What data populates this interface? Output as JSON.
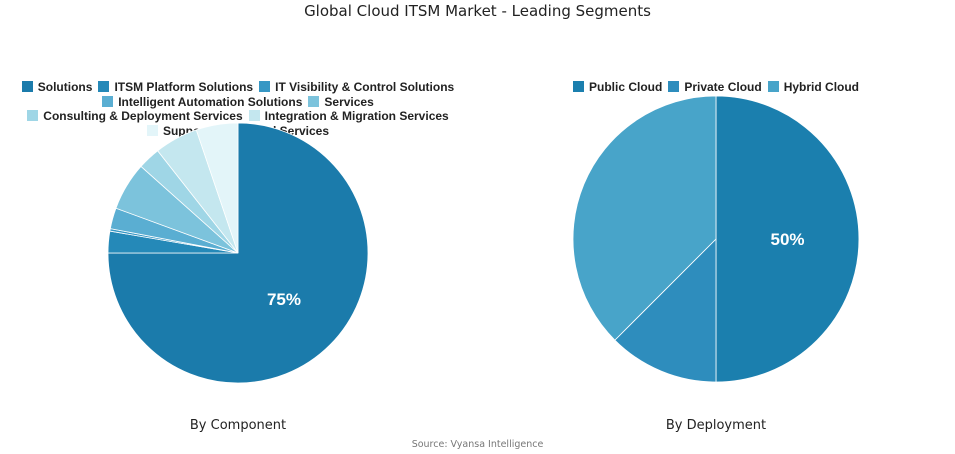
{
  "title": "Global Cloud ITSM Market - Leading Segments",
  "source": "Source: Vyansa Intelligence",
  "chart_data": [
    {
      "type": "pie",
      "subtitle": "By Component",
      "legend_position": "top",
      "categories": [
        "Solutions",
        "ITSM Platform Solutions",
        "IT Visibility & Control Solutions",
        "Intelligent Automation Solutions",
        "Services",
        "Consulting & Deployment Services",
        "Integration & Migration Services",
        "Support & Managed Services"
      ],
      "values": [
        75,
        2.7,
        0.3,
        2.6,
        6,
        2.8,
        5.4,
        5.2
      ],
      "colors": [
        "#1b7bab",
        "#2589b8",
        "#3797c4",
        "#5aaed2",
        "#7cc3dc",
        "#9fd6e6",
        "#c4e7ef",
        "#e3f5f9"
      ],
      "labels": [
        "75%",
        "",
        "",
        "",
        "",
        "",
        "",
        ""
      ]
    },
    {
      "type": "pie",
      "subtitle": "By Deployment",
      "legend_position": "top",
      "categories": [
        "Public Cloud",
        "Private Cloud",
        "Hybrid Cloud"
      ],
      "values": [
        50,
        12.5,
        37.5
      ],
      "colors": [
        "#1b7fae",
        "#2e8dbd",
        "#48a4c9"
      ],
      "labels": [
        "50%",
        "",
        ""
      ]
    }
  ]
}
